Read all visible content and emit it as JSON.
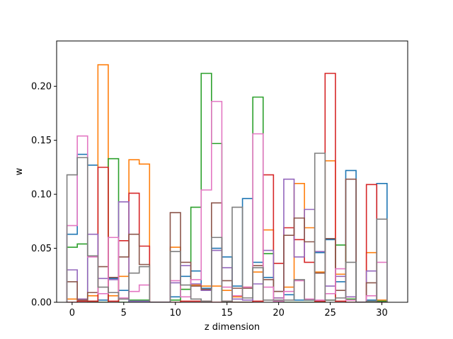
{
  "chart_data": {
    "type": "step-histogram",
    "title": "",
    "xlabel": "z dimension",
    "ylabel": "w",
    "xlim": [
      -1.5,
      32.5
    ],
    "ylim": [
      0,
      0.242
    ],
    "grid": false,
    "legend": "none",
    "x_ticks": [
      0,
      5,
      10,
      15,
      20,
      25,
      30
    ],
    "y_ticks": [
      0.0,
      0.05,
      0.1,
      0.15,
      0.2
    ],
    "y_tick_labels": [
      "0.00",
      "0.05",
      "0.10",
      "0.15",
      "0.20"
    ],
    "bin_width": 1,
    "series": [
      {
        "color": "#1f77b4",
        "values": [
          0.063,
          0.137,
          0.127,
          0.002,
          0.022,
          0.011,
          0.001,
          0.001,
          0,
          0,
          0.005,
          0.024,
          0.029,
          0.013,
          0.05,
          0.042,
          0.015,
          0.096,
          0.037,
          0.023,
          0.01,
          0.007,
          0.002,
          0.002,
          0.046,
          0.058,
          0.019,
          0.122,
          0,
          0.002,
          0.11
        ]
      },
      {
        "color": "#ff7f0e",
        "values": [
          0.003,
          0.003,
          0.006,
          0.22,
          0.006,
          0.024,
          0.132,
          0.128,
          0,
          0,
          0.051,
          0.012,
          0.016,
          0.015,
          0.015,
          0.011,
          0.005,
          0.014,
          0.028,
          0.067,
          0.004,
          0.014,
          0.11,
          0.069,
          0.028,
          0.131,
          0.026,
          0.005,
          0,
          0.046,
          0.002
        ]
      },
      {
        "color": "#2ca02c",
        "values": [
          0.051,
          0.054,
          0.001,
          0,
          0.133,
          0,
          0.002,
          0.002,
          0,
          0,
          0.002,
          0.012,
          0.088,
          0.212,
          0.147,
          0,
          0,
          0,
          0.19,
          0.045,
          0.001,
          0,
          0,
          0,
          0,
          0.002,
          0.053,
          0.003,
          0,
          0,
          0.001
        ]
      },
      {
        "color": "#d62728",
        "values": [
          0,
          0.001,
          0.001,
          0.125,
          0.001,
          0.057,
          0.101,
          0.052,
          0,
          0,
          0,
          0.001,
          0.001,
          0.001,
          0,
          0.001,
          0,
          0,
          0.001,
          0.118,
          0.036,
          0.069,
          0.058,
          0.037,
          0.001,
          0.212,
          0.001,
          0,
          0,
          0.109,
          0
        ]
      },
      {
        "color": "#9467bd",
        "values": [
          0.03,
          0.003,
          0.063,
          0.022,
          0.021,
          0.093,
          0.001,
          0.001,
          0,
          0,
          0.018,
          0.034,
          0.017,
          0.011,
          0.048,
          0.032,
          0.003,
          0.002,
          0.017,
          0.048,
          0.004,
          0.114,
          0.042,
          0.086,
          0.047,
          0.015,
          0.024,
          0.005,
          0,
          0.029,
          0
        ]
      },
      {
        "color": "#8c564b",
        "values": [
          0.019,
          0.002,
          0.009,
          0.033,
          0.023,
          0.042,
          0.063,
          0.035,
          0,
          0,
          0.083,
          0.037,
          0.015,
          0.012,
          0.092,
          0.02,
          0.013,
          0.013,
          0.034,
          0.021,
          0.01,
          0.062,
          0.078,
          0.056,
          0.027,
          0.059,
          0.011,
          0.114,
          0,
          0.018,
          0
        ]
      },
      {
        "color": "#e377c2",
        "values": [
          0.071,
          0.154,
          0.042,
          0.008,
          0.06,
          0.004,
          0.01,
          0.016,
          0,
          0,
          0.02,
          0.005,
          0.021,
          0.104,
          0.186,
          0.014,
          0.006,
          0.014,
          0.156,
          0.014,
          0.001,
          0.01,
          0.02,
          0.003,
          0.002,
          0.008,
          0.031,
          0.002,
          0,
          0.006,
          0.037
        ]
      },
      {
        "color": "#7f7f7f",
        "values": [
          0.118,
          0.134,
          0.043,
          0.014,
          0.009,
          0.003,
          0.027,
          0.033,
          0,
          0,
          0.047,
          0.016,
          0.003,
          0.001,
          0.06,
          0.001,
          0.088,
          0.004,
          0.032,
          0.002,
          0.002,
          0.002,
          0.021,
          0.002,
          0.138,
          0.002,
          0.004,
          0.037,
          0,
          0.001,
          0.077
        ]
      }
    ]
  }
}
